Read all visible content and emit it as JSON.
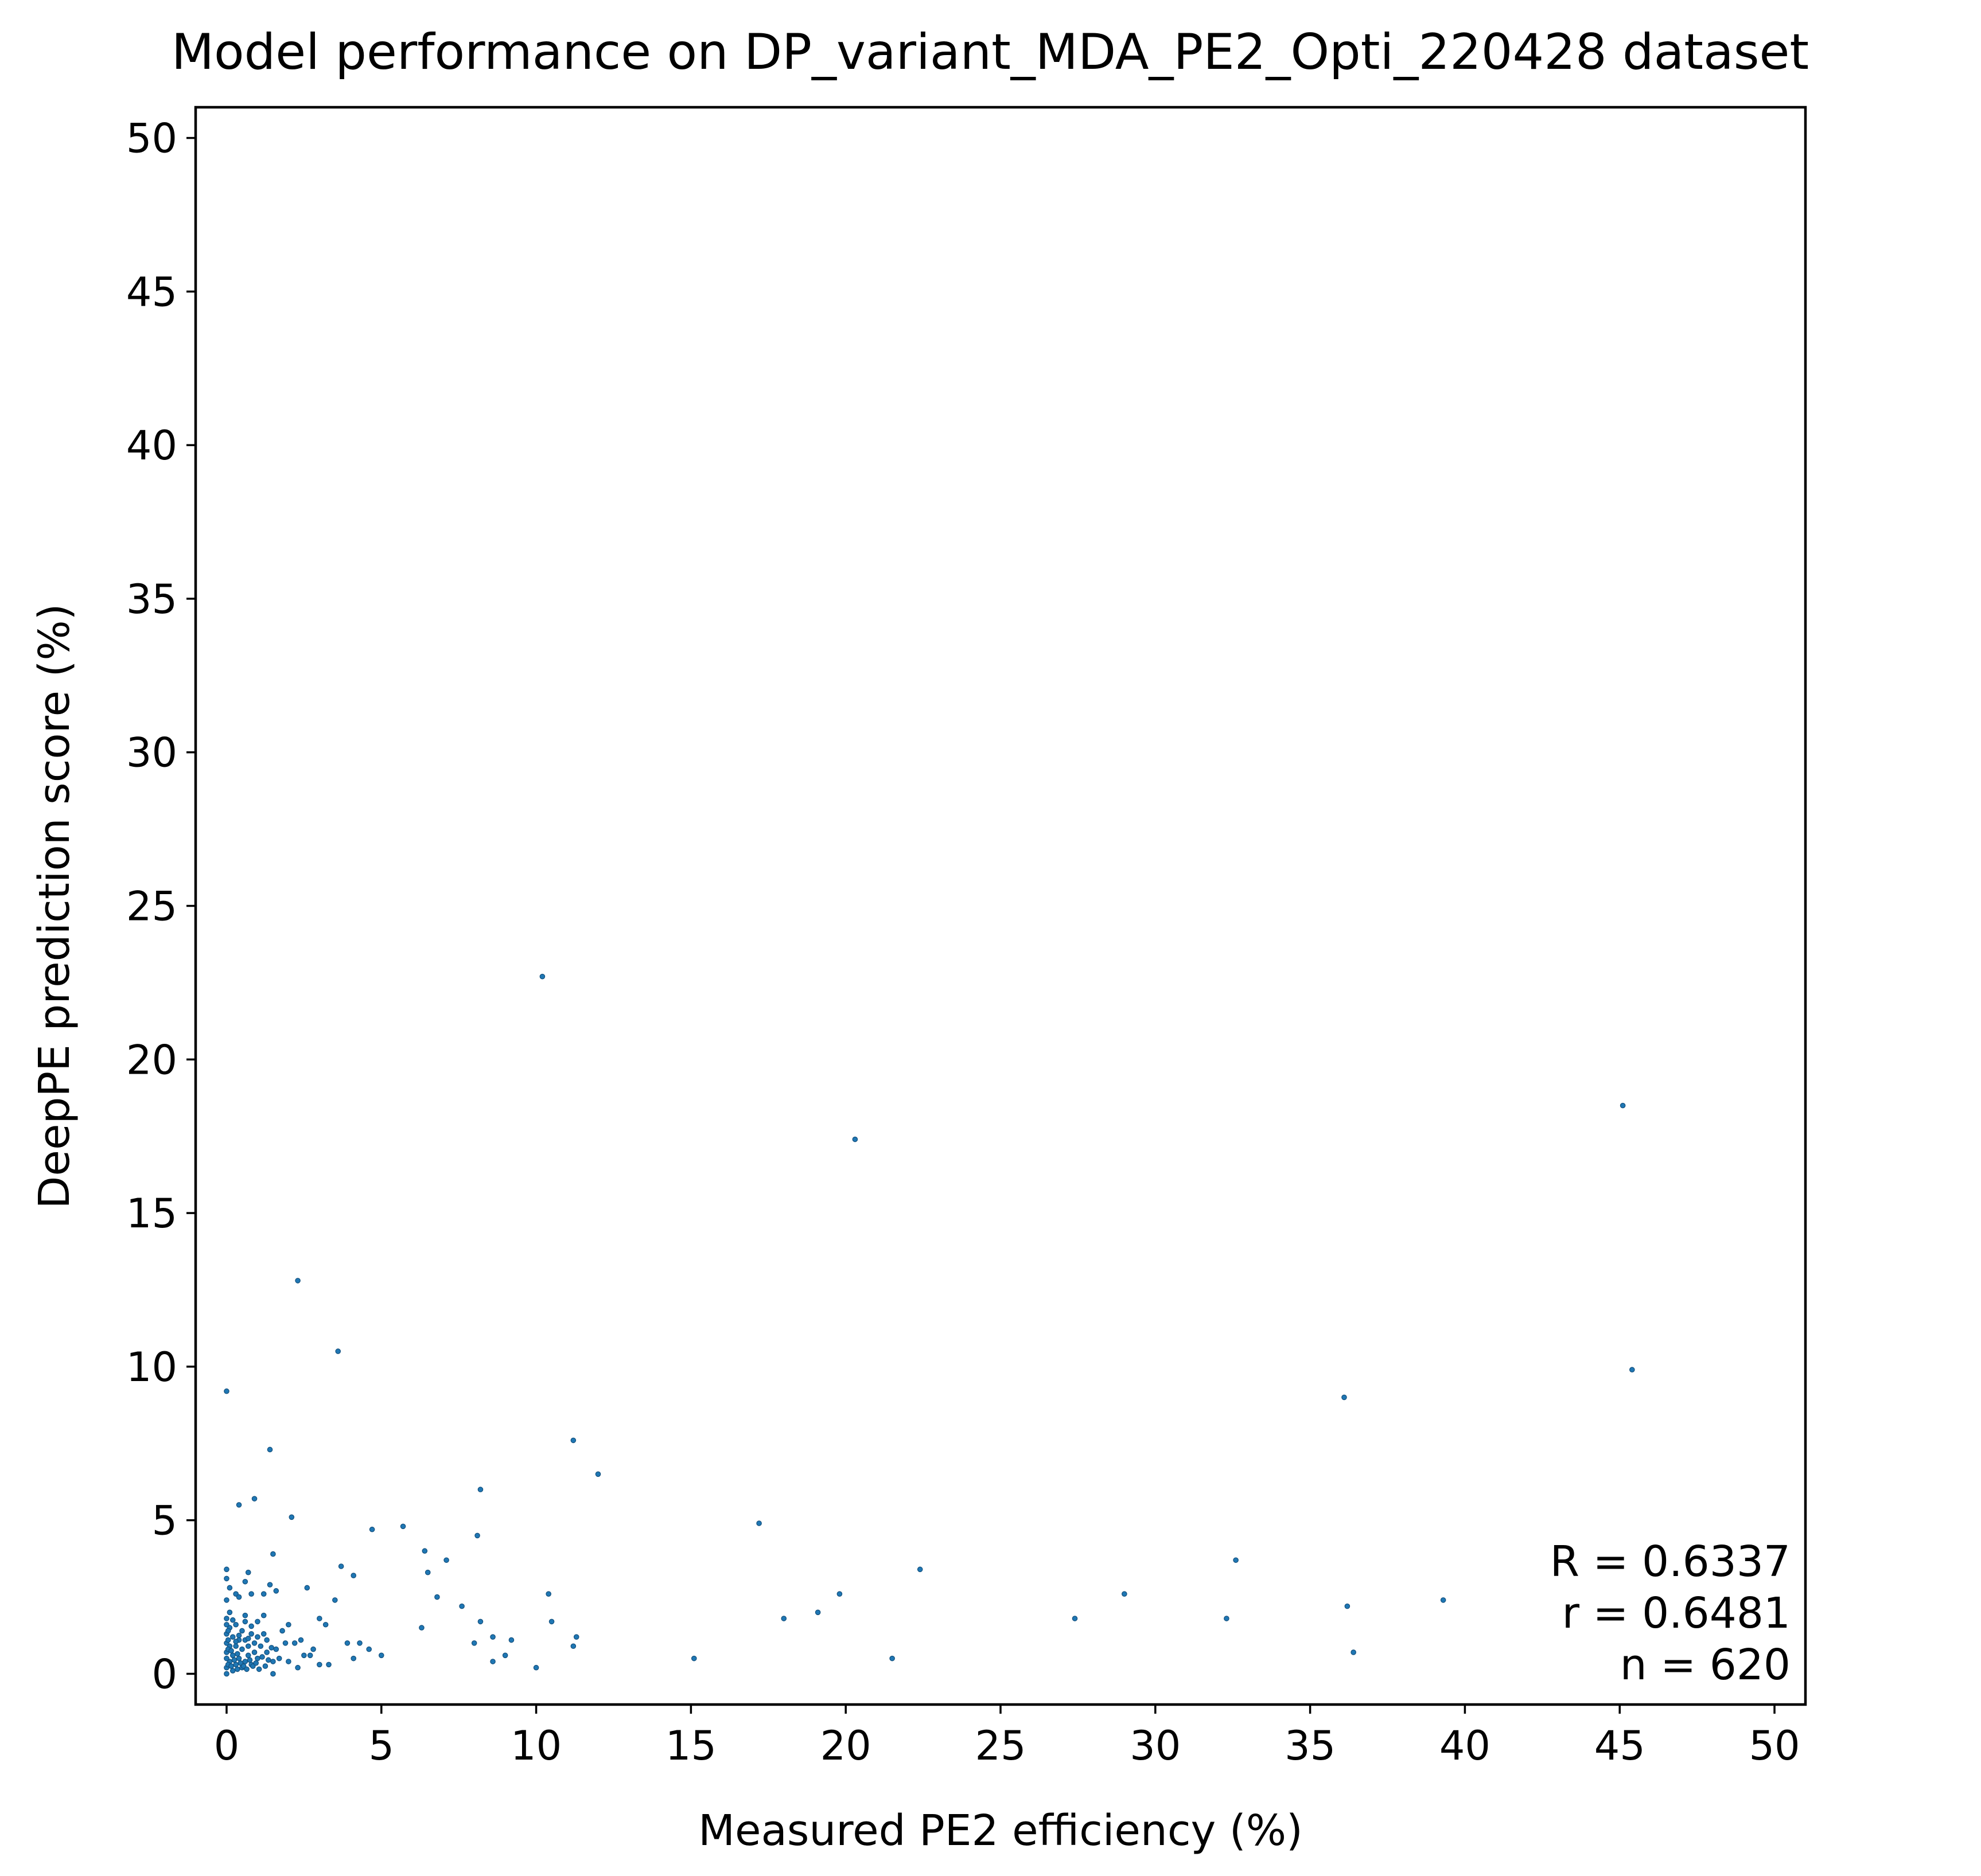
{
  "chart_data": {
    "type": "scatter",
    "title": "Model performance on DP_variant_MDA_PE2_Opti_220428 dataset",
    "xlabel": "Measured PE2 efficiency (%)",
    "ylabel": "DeepPE prediction score (%)",
    "xlim": [
      -1,
      51
    ],
    "ylim": [
      -1,
      51
    ],
    "xticks": [
      0,
      5,
      10,
      15,
      20,
      25,
      30,
      35,
      40,
      45,
      50
    ],
    "yticks": [
      0,
      5,
      10,
      15,
      20,
      25,
      30,
      35,
      40,
      45,
      50
    ],
    "grid": false,
    "marker_color": "#1f77b4",
    "annotation": {
      "placement": "bottom-right",
      "lines": [
        "R = 0.6337",
        "r = 0.6481",
        "n = 620"
      ]
    },
    "series": [
      {
        "points": [
          [
            10.2,
            22.7
          ],
          [
            20.3,
            17.4
          ],
          [
            45.1,
            18.5
          ],
          [
            45.4,
            9.9
          ],
          [
            36.1,
            9.0
          ],
          [
            0.0,
            9.2
          ],
          [
            2.3,
            12.8
          ],
          [
            3.6,
            10.5
          ],
          [
            1.4,
            7.3
          ],
          [
            11.2,
            7.6
          ],
          [
            12.0,
            6.5
          ],
          [
            8.2,
            6.0
          ],
          [
            8.1,
            4.5
          ],
          [
            0.4,
            5.5
          ],
          [
            0.9,
            5.7
          ],
          [
            2.1,
            5.1
          ],
          [
            4.7,
            4.7
          ],
          [
            5.7,
            4.8
          ],
          [
            17.2,
            4.9
          ],
          [
            6.4,
            4.0
          ],
          [
            7.1,
            3.7
          ],
          [
            6.5,
            3.3
          ],
          [
            3.7,
            3.5
          ],
          [
            4.1,
            3.2
          ],
          [
            1.5,
            3.9
          ],
          [
            22.4,
            3.4
          ],
          [
            32.6,
            3.7
          ],
          [
            0.0,
            3.4
          ],
          [
            0.7,
            3.3
          ],
          [
            0.0,
            3.1
          ],
          [
            0.6,
            3.0
          ],
          [
            1.4,
            2.9
          ],
          [
            0.1,
            2.8
          ],
          [
            1.6,
            2.7
          ],
          [
            0.3,
            2.6
          ],
          [
            0.4,
            2.5
          ],
          [
            0.8,
            2.6
          ],
          [
            1.2,
            2.6
          ],
          [
            2.6,
            2.8
          ],
          [
            3.5,
            2.4
          ],
          [
            6.8,
            2.5
          ],
          [
            10.4,
            2.6
          ],
          [
            19.8,
            2.6
          ],
          [
            29.0,
            2.6
          ],
          [
            39.3,
            2.4
          ],
          [
            36.2,
            2.2
          ],
          [
            7.6,
            2.2
          ],
          [
            19.1,
            2.0
          ],
          [
            18.0,
            1.8
          ],
          [
            27.4,
            1.8
          ],
          [
            32.3,
            1.8
          ],
          [
            10.5,
            1.7
          ],
          [
            8.2,
            1.7
          ],
          [
            6.3,
            1.5
          ],
          [
            3.2,
            1.6
          ],
          [
            11.3,
            1.2
          ],
          [
            2.0,
            1.6
          ],
          [
            3.0,
            1.8
          ],
          [
            4.3,
            1.0
          ],
          [
            8.6,
            1.2
          ],
          [
            9.2,
            1.1
          ],
          [
            11.2,
            0.9
          ],
          [
            8.0,
            1.0
          ],
          [
            3.9,
            1.0
          ],
          [
            4.6,
            0.8
          ],
          [
            4.1,
            0.5
          ],
          [
            5.0,
            0.6
          ],
          [
            9.0,
            0.6
          ],
          [
            8.6,
            0.4
          ],
          [
            15.1,
            0.5
          ],
          [
            21.5,
            0.5
          ],
          [
            36.4,
            0.7
          ],
          [
            10.0,
            0.2
          ],
          [
            3.3,
            0.3
          ],
          [
            2.5,
            0.6
          ],
          [
            2.8,
            0.8
          ],
          [
            3.0,
            0.3
          ],
          [
            2.2,
            1.0
          ],
          [
            2.4,
            1.1
          ],
          [
            2.7,
            0.6
          ],
          [
            2.0,
            0.4
          ],
          [
            2.3,
            0.2
          ],
          [
            1.7,
            0.5
          ],
          [
            1.5,
            0.0
          ],
          [
            1.8,
            1.4
          ],
          [
            1.9,
            1.0
          ],
          [
            1.6,
            0.8
          ],
          [
            1.5,
            0.4
          ],
          [
            1.3,
            1.1
          ],
          [
            1.3,
            0.7
          ],
          [
            1.2,
            1.3
          ],
          [
            1.1,
            0.9
          ],
          [
            1.0,
            0.5
          ],
          [
            1.0,
            1.2
          ],
          [
            0.9,
            0.7
          ],
          [
            0.9,
            1.0
          ],
          [
            0.8,
            0.3
          ],
          [
            0.8,
            1.3
          ],
          [
            0.7,
            0.9
          ],
          [
            0.7,
            0.6
          ],
          [
            0.6,
            1.7
          ],
          [
            0.6,
            0.4
          ],
          [
            0.6,
            1.1
          ],
          [
            0.5,
            0.2
          ],
          [
            0.5,
            0.8
          ],
          [
            0.5,
            1.4
          ],
          [
            0.4,
            0.5
          ],
          [
            0.4,
            1.1
          ],
          [
            0.3,
            0.3
          ],
          [
            0.3,
            0.9
          ],
          [
            0.3,
            1.6
          ],
          [
            0.2,
            0.1
          ],
          [
            0.2,
            0.6
          ],
          [
            0.2,
            1.2
          ],
          [
            0.1,
            0.4
          ],
          [
            0.1,
            0.9
          ],
          [
            0.1,
            1.5
          ],
          [
            0.1,
            2.0
          ],
          [
            0.0,
            0.0
          ],
          [
            0.0,
            0.2
          ],
          [
            0.0,
            0.5
          ],
          [
            0.0,
            0.7
          ],
          [
            0.0,
            1.0
          ],
          [
            0.0,
            1.3
          ],
          [
            0.0,
            1.6
          ],
          [
            0.0,
            1.8
          ],
          [
            0.0,
            2.4
          ],
          [
            0.05,
            0.3
          ],
          [
            0.05,
            0.8
          ],
          [
            0.05,
            1.1
          ],
          [
            0.05,
            1.4
          ],
          [
            0.15,
            0.25
          ],
          [
            0.15,
            0.75
          ],
          [
            0.25,
            0.45
          ],
          [
            0.35,
            0.15
          ],
          [
            0.35,
            0.65
          ],
          [
            0.45,
            0.35
          ],
          [
            0.55,
            0.25
          ],
          [
            0.65,
            0.15
          ],
          [
            0.75,
            0.45
          ],
          [
            0.85,
            0.25
          ],
          [
            0.95,
            0.35
          ],
          [
            1.05,
            0.15
          ],
          [
            1.15,
            0.55
          ],
          [
            1.25,
            0.25
          ],
          [
            1.35,
            0.45
          ],
          [
            1.45,
            0.85
          ],
          [
            0.2,
            1.75
          ],
          [
            0.4,
            1.25
          ],
          [
            0.6,
            1.9
          ],
          [
            0.8,
            1.55
          ],
          [
            1.0,
            1.7
          ],
          [
            1.2,
            1.9
          ],
          [
            0.3,
            1.05
          ],
          [
            0.7,
            1.15
          ]
        ]
      }
    ]
  }
}
